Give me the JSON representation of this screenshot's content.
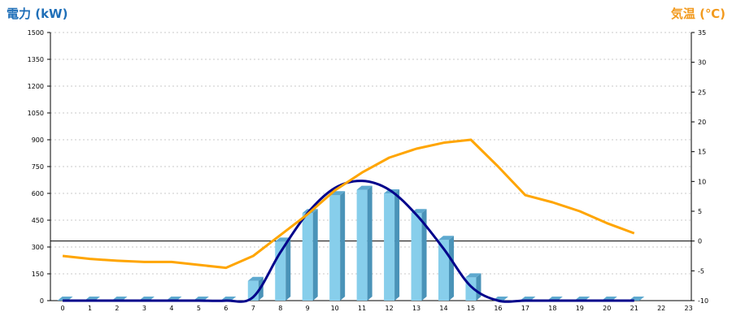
{
  "chart_data": {
    "type": "bar",
    "left_axis_title": "電力 (kW)",
    "right_axis_title": "気温 (℃)",
    "x": [
      "0",
      "1",
      "2",
      "3",
      "4",
      "5",
      "6",
      "7",
      "8",
      "9",
      "10",
      "11",
      "12",
      "13",
      "14",
      "15",
      "16",
      "17",
      "18",
      "19",
      "20",
      "21",
      "22",
      "23"
    ],
    "y_left_ticks": [
      "0",
      "150",
      "300",
      "450",
      "600",
      "750",
      "900",
      "1050",
      "1200",
      "1350",
      "1500"
    ],
    "y_right_ticks": [
      "-10",
      "-5",
      "0",
      "5",
      "10",
      "15",
      "20",
      "25",
      "30",
      "35"
    ],
    "ylim_left": [
      0,
      1500
    ],
    "ylim_right": [
      -10,
      35
    ],
    "grid": true,
    "colors": {
      "bars": "#87ceeb",
      "curve": "#00008b",
      "temperature": "#ffa500",
      "left_title": "#1f6fb8",
      "right_title": "#f29a1e"
    },
    "series": [
      {
        "type": "bar",
        "axis": "left",
        "values": [
          0,
          0,
          0,
          0,
          0,
          0,
          0,
          110,
          330,
          490,
          590,
          620,
          600,
          490,
          340,
          130,
          0,
          0,
          0,
          0,
          0,
          0,
          null,
          null
        ]
      },
      {
        "type": "line",
        "axis": "left",
        "values": [
          0,
          0,
          0,
          0,
          0,
          0,
          0,
          20,
          270,
          490,
          630,
          670,
          620,
          480,
          290,
          80,
          0,
          0,
          0,
          0,
          0,
          0,
          null,
          null
        ]
      },
      {
        "type": "line",
        "axis": "right",
        "values": [
          -2.5,
          -3,
          -3.3,
          -3.5,
          -3.5,
          -4,
          -4.5,
          -2.5,
          1,
          4.5,
          8.5,
          11.5,
          14,
          15.5,
          16.5,
          17,
          12.5,
          7.7,
          6.5,
          5,
          3,
          1.3,
          null,
          null
        ]
      }
    ]
  }
}
